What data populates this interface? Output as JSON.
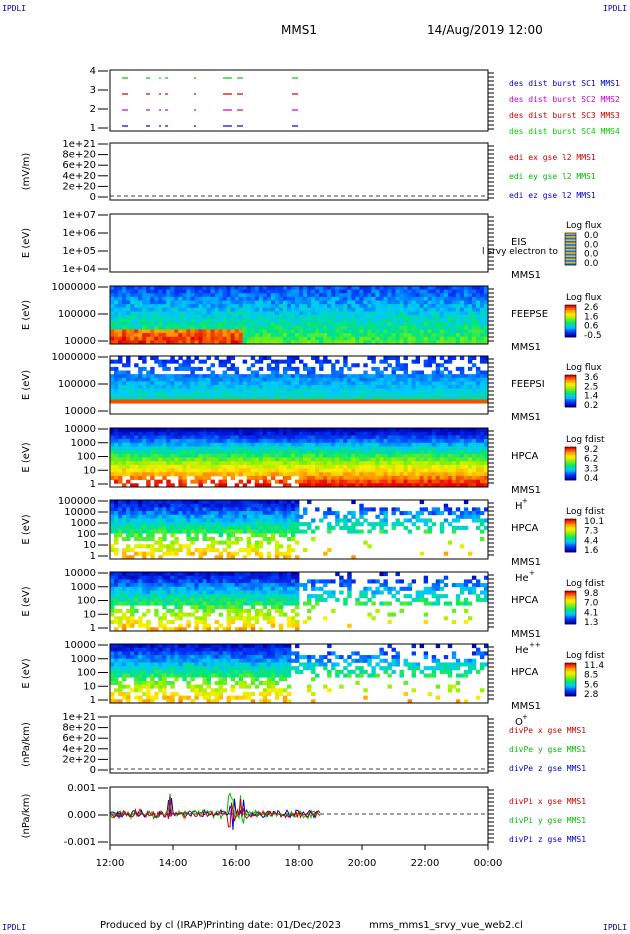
{
  "corners": {
    "tl": "IPDLI",
    "tr": "IPDLI",
    "bl": "IPDLI",
    "br": "IPDLI"
  },
  "header": {
    "mission": "MMS1",
    "datetime": "14/Aug/2019 12:00"
  },
  "footer": {
    "produced": "Produced by cl (IRAP)",
    "printing": "Printing date: 01/Dec/2023",
    "file": "mms_mms1_srvy_vue_web2.cl"
  },
  "chart_data": {
    "type": "multi-panel time series (line + spectrogram)",
    "x_ticks": [
      "12:00",
      "14:00",
      "16:00",
      "18:00",
      "20:00",
      "22:00",
      "00:00"
    ],
    "panels": [
      {
        "id": "burst",
        "type": "timeline",
        "yticks": [
          "4",
          "3",
          "2",
          "1"
        ],
        "legend": [
          {
            "text": "des dist burst SC1 MMS1",
            "color": "#0000cc"
          },
          {
            "text": "des dist burst SC2 MMS2",
            "color": "#cc00cc"
          },
          {
            "text": "des dist burst SC3 MMS3",
            "color": "#cc0000"
          },
          {
            "text": "des dist burst SC4 MMS4",
            "color": "#00cc00"
          }
        ]
      },
      {
        "id": "edi",
        "type": "line",
        "ylabel": "(mV/m)",
        "yticks": [
          "1e+21",
          "8e+20",
          "6e+20",
          "4e+20",
          "2e+20",
          "0"
        ],
        "legend": [
          {
            "text": "edi ex gse l2 MMS1",
            "color": "#cc0000"
          },
          {
            "text": "edi ey gse l2 MMS1",
            "color": "#00bb00"
          },
          {
            "text": "edi ez gse l2 MMS1",
            "color": "#0000cc"
          }
        ]
      },
      {
        "id": "eis",
        "type": "heatmap",
        "ylabel": "E (eV)",
        "yticks": [
          "1e+07",
          "1e+06",
          "1e+05",
          "1e+04"
        ],
        "labels": [
          "EIS",
          "MMS1"
        ],
        "overlay": "l srvy electron to",
        "cb_title": "Log flux",
        "cb_ticks": [
          "0.0",
          "0.0",
          "0.0",
          "0.0"
        ]
      },
      {
        "id": "feepse",
        "type": "heatmap",
        "ylabel": "E (eV)",
        "yticks": [
          "1000000",
          "100000",
          "10000"
        ],
        "labels": [
          "FEEPSE",
          "MMS1"
        ],
        "cb_title": "Log flux",
        "cb_ticks": [
          "2.6",
          "1.6",
          "0.6",
          "-0.5"
        ]
      },
      {
        "id": "feepsi",
        "type": "heatmap",
        "ylabel": "E (eV)",
        "yticks": [
          "1000000",
          "100000",
          "10000"
        ],
        "labels": [
          "FEEPSI",
          "MMS1"
        ],
        "cb_title": "Log flux",
        "cb_ticks": [
          "3.6",
          "2.5",
          "1.4",
          "0.2"
        ]
      },
      {
        "id": "hpca_h",
        "type": "heatmap",
        "ylabel": "E (eV)",
        "yticks": [
          "10000",
          "1000",
          "100",
          "10",
          "1"
        ],
        "labels": [
          "HPCA",
          "MMS1",
          "H"
        ],
        "sup": "+",
        "cb_title": "Log fdist",
        "cb_ticks": [
          "9.2",
          "6.2",
          "3.3",
          "0.4"
        ]
      },
      {
        "id": "hpca_he",
        "type": "heatmap",
        "ylabel": "E (eV)",
        "yticks": [
          "100000",
          "10000",
          "1000",
          "100",
          "10",
          "1"
        ],
        "labels": [
          "HPCA",
          "MMS1",
          "He"
        ],
        "sup": "+",
        "cb_title": "Log fdist",
        "cb_ticks": [
          "10.1",
          "7.3",
          "4.4",
          "1.6"
        ]
      },
      {
        "id": "hpca_hepp",
        "type": "heatmap",
        "ylabel": "E (eV)",
        "yticks": [
          "10000",
          "1000",
          "100",
          "10",
          "1"
        ],
        "labels": [
          "HPCA",
          "MMS1",
          "He"
        ],
        "sup": "++",
        "cb_title": "Log fdist",
        "cb_ticks": [
          "9.8",
          "7.0",
          "4.1",
          "1.3"
        ]
      },
      {
        "id": "hpca_o",
        "type": "heatmap",
        "ylabel": "E (eV)",
        "yticks": [
          "10000",
          "1000",
          "100",
          "10",
          "1"
        ],
        "labels": [
          "HPCA",
          "MMS1",
          "O"
        ],
        "sup": "+",
        "cb_title": "Log fdist",
        "cb_ticks": [
          "11.4",
          "8.5",
          "5.6",
          "2.8"
        ]
      },
      {
        "id": "divpe",
        "type": "line",
        "ylabel": "(nPa/km)",
        "yticks": [
          "1e+21",
          "8e+20",
          "6e+20",
          "4e+20",
          "2e+20",
          "0"
        ],
        "legend": [
          {
            "text": "divPe x gse MMS1",
            "color": "#cc0000"
          },
          {
            "text": "divPe y gse MMS1",
            "color": "#00bb00"
          },
          {
            "text": "divPe z gse MMS1",
            "color": "#0000cc"
          }
        ]
      },
      {
        "id": "divpi",
        "type": "line",
        "ylabel": "(nPa/km)",
        "yticks": [
          "0.001",
          "0.000",
          "-0.001"
        ],
        "legend": [
          {
            "text": "divPi x gse MMS1",
            "color": "#cc0000"
          },
          {
            "text": "divPi y gse MMS1",
            "color": "#00bb00"
          },
          {
            "text": "divPi z gse MMS1",
            "color": "#0000cc"
          }
        ]
      }
    ]
  }
}
